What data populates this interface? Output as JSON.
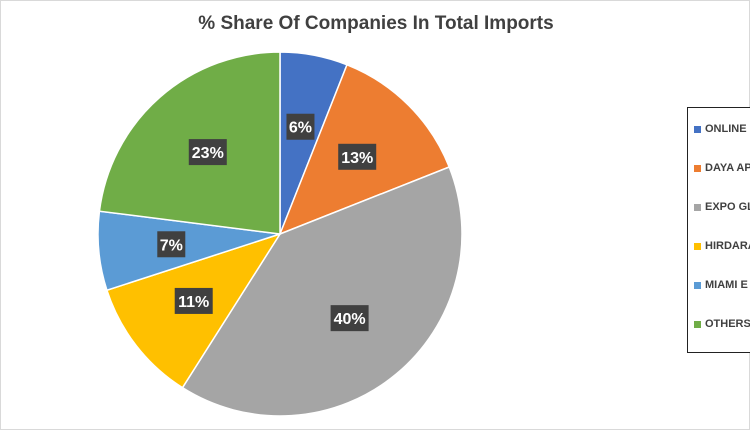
{
  "chart_data": {
    "type": "pie",
    "title": "% Share Of Companies In Total Imports",
    "slices": [
      {
        "label": "ONLINE",
        "value": 6,
        "display": "6%",
        "color": "#4472C4"
      },
      {
        "label": "DAYA AP",
        "value": 13,
        "display": "13%",
        "color": "#ED7D31"
      },
      {
        "label": "EXPO GL",
        "value": 40,
        "display": "40%",
        "color": "#A5A5A5"
      },
      {
        "label": "HIRDARA",
        "value": 11,
        "display": "11%",
        "color": "#FFC000"
      },
      {
        "label": "MIAMI E",
        "value": 7,
        "display": "7%",
        "color": "#5B9BD5"
      },
      {
        "label": "OTHERS",
        "value": 23,
        "display": "23%",
        "color": "#70AD47"
      }
    ],
    "legend_position": "right"
  }
}
